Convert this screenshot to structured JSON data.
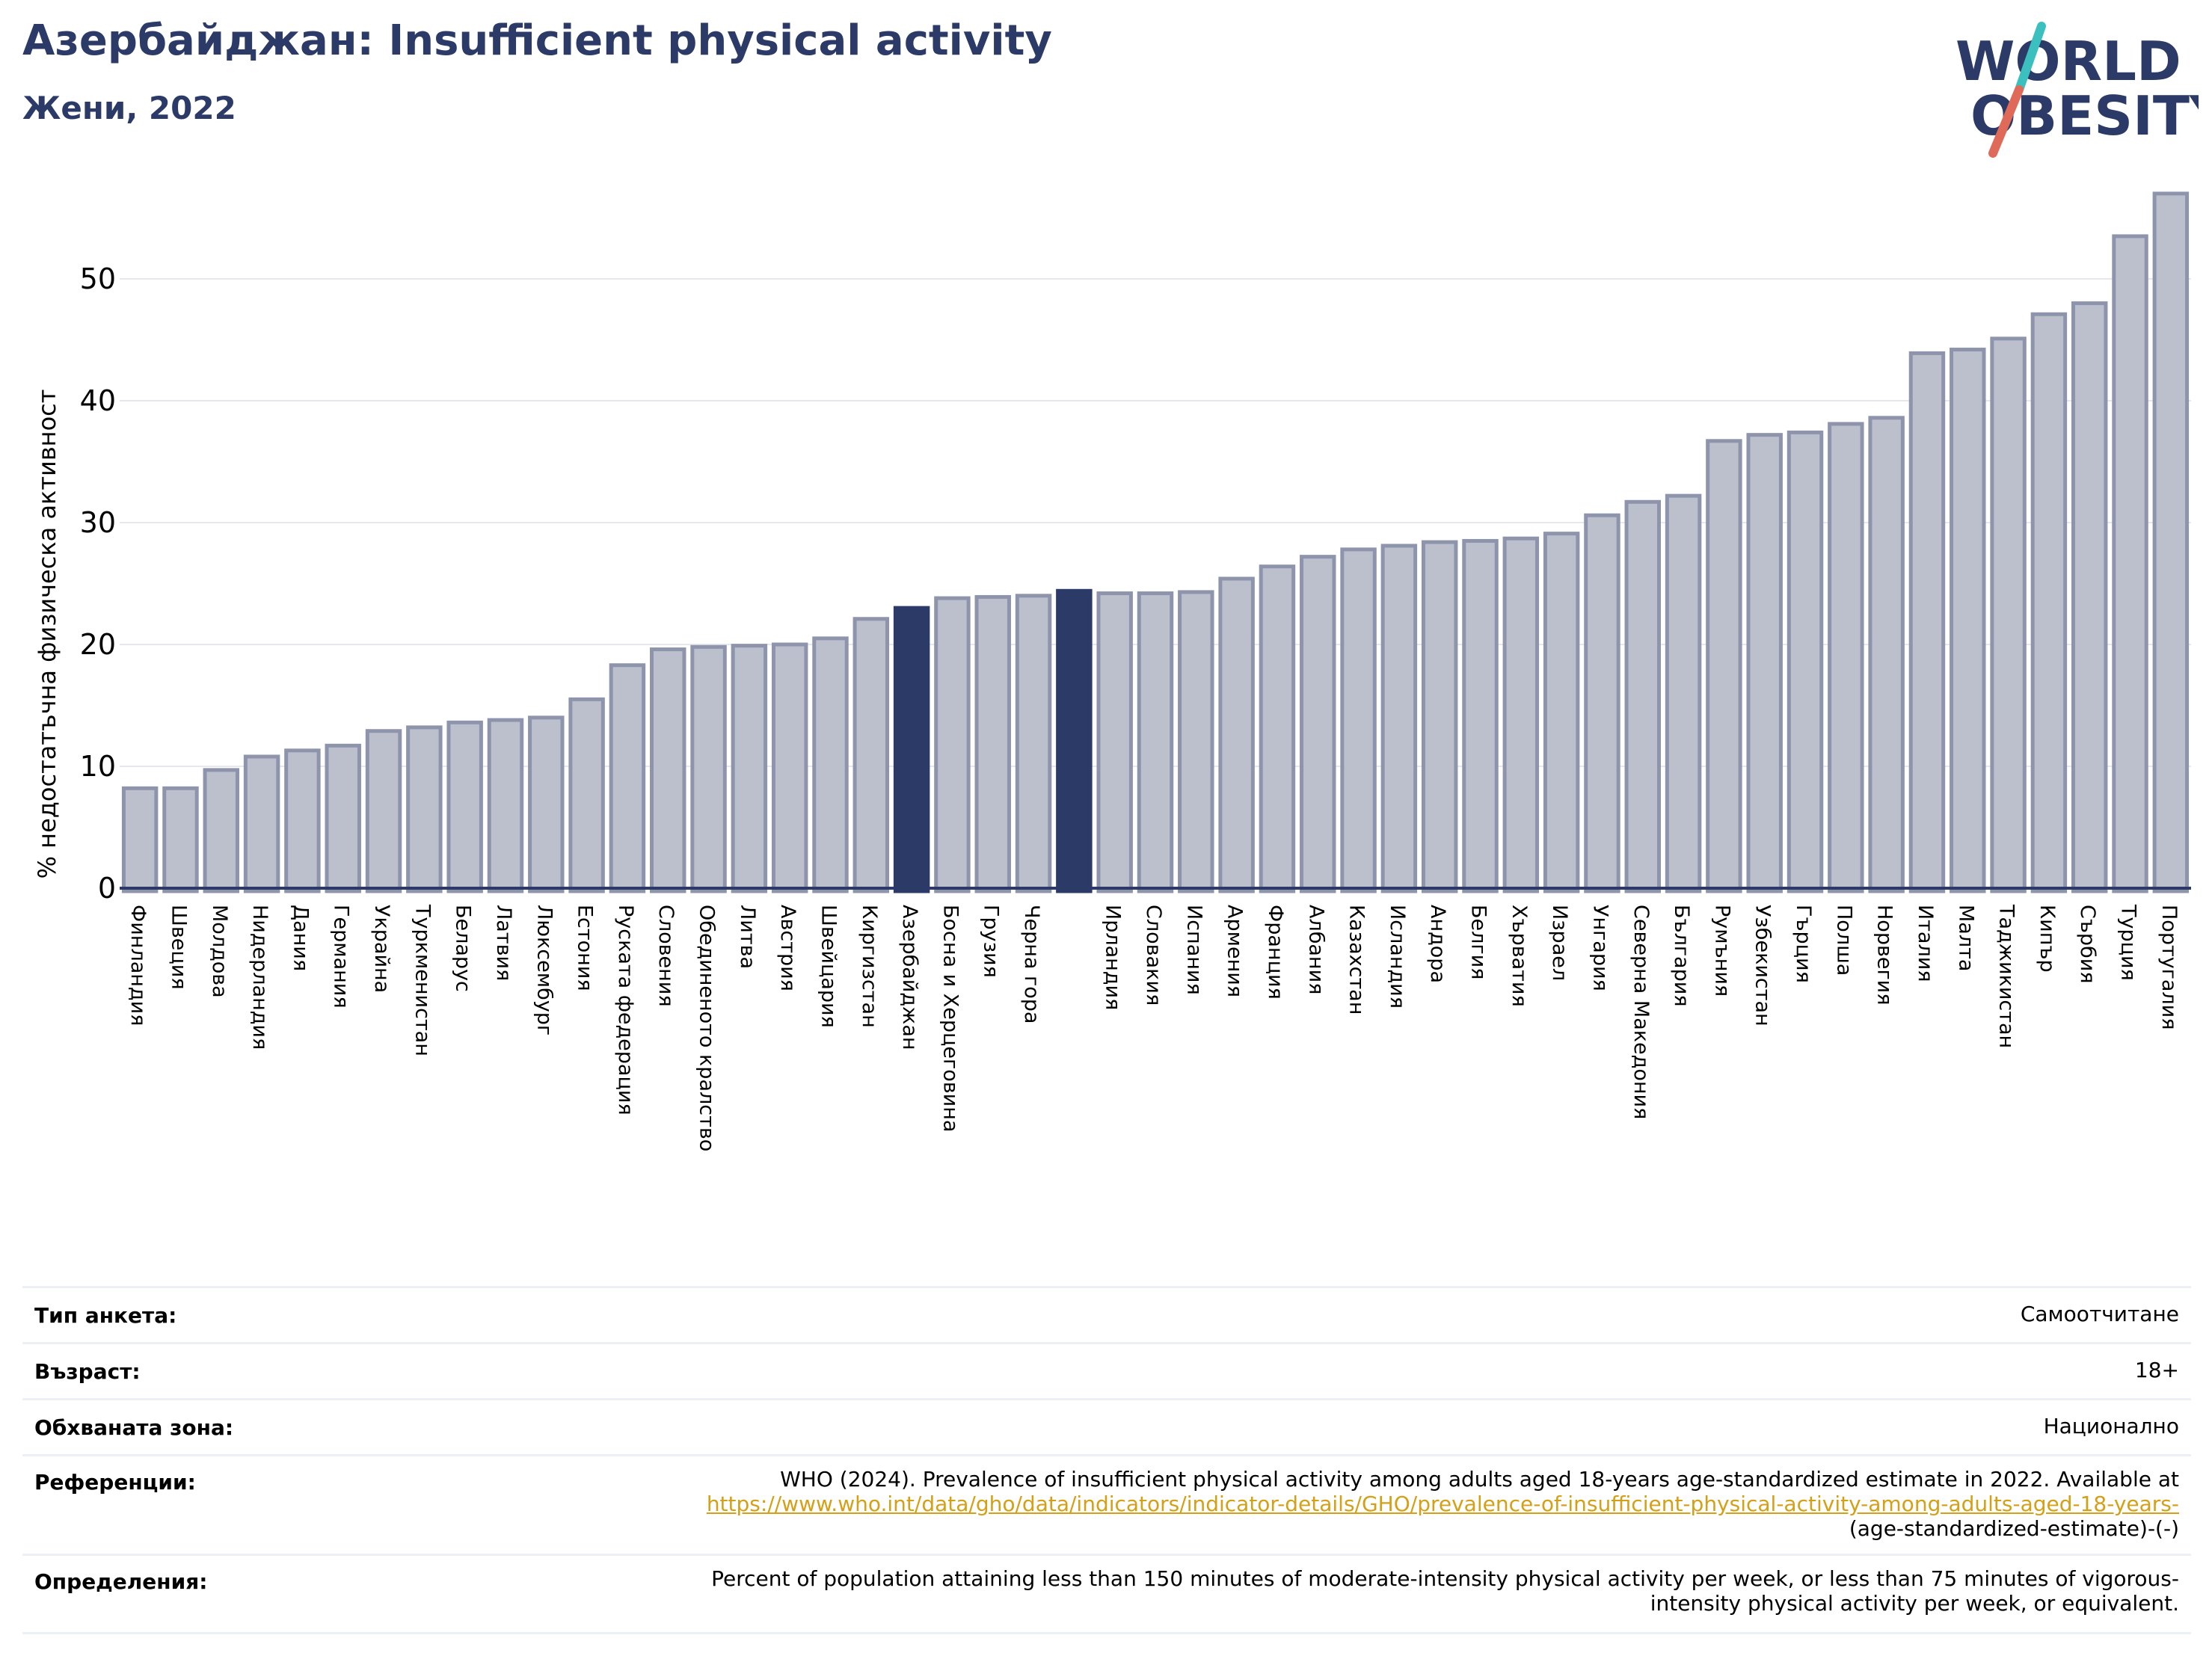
{
  "header": {
    "title": "Азербайджан: Insufficient physical activity",
    "subtitle": "Жени, 2022"
  },
  "logo": {
    "line1": "WORLD",
    "line2": "OBESITY",
    "colors": {
      "text": "#2b3a67",
      "slash_top": "#3bbfbf",
      "slash_bottom": "#e06a5a"
    }
  },
  "chart_data": {
    "type": "bar",
    "ylabel": "% недостатъчна физическа активност",
    "ylim": [
      0,
      58
    ],
    "yticks": [
      0,
      10,
      20,
      30,
      40,
      50
    ],
    "grid": true,
    "categories": [
      "Финландия",
      "Швеция",
      "Молдова",
      "Нидерландия",
      "Дания",
      "Германия",
      "Украйна",
      "Туркменистан",
      "Беларус",
      "Латвия",
      "Люксембург",
      "Естония",
      "Руската федерация",
      "Словения",
      "Обединеното кралство",
      "Литва",
      "Австрия",
      "Швейцария",
      "Киргизстан",
      "Азербайджан",
      "Босна и Херцеговина",
      "Грузия",
      "Черна гора",
      "",
      "Ирландия",
      "Словакия",
      "Испания",
      "Армения",
      "Франция",
      "Албания",
      "Казахстан",
      "Исландия",
      "Андора",
      "Белгия",
      "Хърватия",
      "Израел",
      "Унгария",
      "Северна Македония",
      "България",
      "Румъния",
      "Узбекистан",
      "Гърция",
      "Полша",
      "Норвегия",
      "Италия",
      "Малта",
      "Таджикистан",
      "Кипър",
      "Сърбия",
      "Турция",
      "Португалия"
    ],
    "values": [
      8.2,
      8.2,
      9.7,
      10.8,
      11.3,
      11.7,
      12.9,
      13.2,
      13.6,
      13.8,
      14.0,
      15.5,
      18.3,
      19.6,
      19.8,
      19.9,
      20.0,
      20.5,
      22.1,
      23.0,
      23.8,
      23.9,
      24.0,
      24.4,
      24.2,
      24.2,
      24.3,
      25.4,
      26.4,
      27.2,
      27.8,
      28.1,
      28.4,
      28.5,
      28.7,
      29.1,
      30.6,
      31.7,
      32.2,
      36.7,
      37.2,
      37.4,
      38.1,
      38.6,
      43.9,
      44.2,
      45.1,
      47.1,
      48.0,
      53.5,
      57.0
    ],
    "highlight_indices": [
      19,
      23
    ],
    "colors": {
      "bar": "#bcc0cd",
      "bar_edge": "#8e94ab",
      "highlight": "#2b3a67",
      "axis": "#2b3a67",
      "grid": "#e6e8ee"
    }
  },
  "info": {
    "rows": [
      {
        "label": "Тип анкета:",
        "lines": [
          "Самоотчитане"
        ]
      },
      {
        "label": "Възраст:",
        "lines": [
          "18+"
        ]
      },
      {
        "label": "Обхваната зона:",
        "lines": [
          "Национално"
        ]
      },
      {
        "label": "Референции:",
        "lines": [
          "WHO (2024). Prevalence of insufficient physical activity among adults aged 18-years age-standardized estimate in 2022. Available at",
          "https://www.who.int/data/gho/data/indicators/indicator-details/GHO/prevalence-of-insufficient-physical-activity-among-adults-aged-18-years-",
          "(age-standardized-estimate)-(-)"
        ]
      },
      {
        "label": "Определения:",
        "lines": [
          "Percent of population attaining less than 150 minutes of moderate-intensity physical activity per week, or less than 75 minutes of vigorous-",
          "intensity physical activity per week, or equivalent."
        ]
      }
    ]
  }
}
